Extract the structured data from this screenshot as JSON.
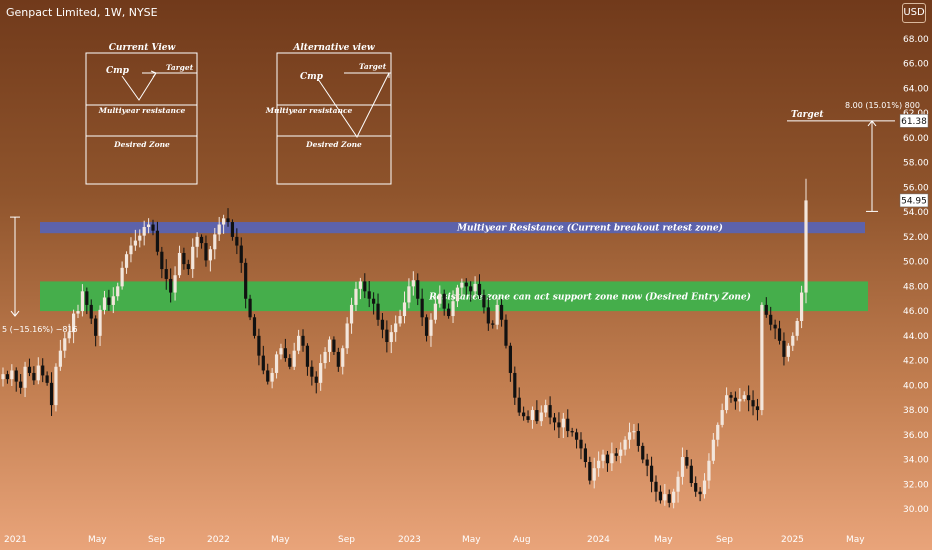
{
  "header": {
    "title": "Genpact Limited, 1W, NYSE",
    "currency": "USD"
  },
  "chart_data": {
    "type": "candlestick",
    "title": "Genpact Limited, 1W, NYSE",
    "y_axis": {
      "position": "right",
      "ylim": [
        29,
        70
      ],
      "ticks": [
        "30.00",
        "32.00",
        "34.00",
        "36.00",
        "38.00",
        "40.00",
        "42.00",
        "44.00",
        "46.00",
        "48.00",
        "50.00",
        "52.00",
        "54.00",
        "56.00",
        "58.00",
        "60.00",
        "62.00",
        "64.00",
        "66.00",
        "68.00"
      ]
    },
    "x_axis": {
      "ticks": [
        "2021",
        "May",
        "Sep",
        "2022",
        "May",
        "Sep",
        "2023",
        "May",
        "Aug",
        "2024",
        "May",
        "Sep",
        "2025",
        "May"
      ]
    },
    "price_labels": {
      "target": "61.38",
      "current": "54.95"
    },
    "zones": [
      {
        "label": "Multiyear Resistance (Current breakout retest zone)",
        "from": 52.3,
        "to": 53.2,
        "color": "#5a63b2"
      },
      {
        "label": "Resistance zone can act support zone now (Desired Entry Zone)",
        "from": 46.0,
        "to": 48.4,
        "color": "#3fb24c"
      }
    ],
    "target_line": {
      "label": "Target",
      "value": 61.38,
      "measure": "8.00 (15.01%) 800"
    },
    "left_measure": "5 (−15.16%) −816",
    "weekly_closes": [
      40.9,
      40.5,
      41.2,
      40.3,
      39.8,
      41.5,
      41.0,
      40.4,
      41.6,
      40.8,
      40.2,
      38.4,
      41.5,
      42.8,
      43.8,
      44.3,
      45.8,
      46.0,
      47.6,
      46.5,
      45.4,
      44.0,
      46.1,
      47.1,
      46.5,
      47.2,
      48.0,
      49.5,
      50.6,
      51.3,
      51.7,
      52.1,
      52.8,
      53.0,
      52.5,
      50.8,
      49.4,
      48.6,
      47.5,
      48.9,
      50.7,
      49.8,
      49.4,
      51.2,
      52.0,
      51.5,
      50.1,
      51.0,
      52.2,
      53.0,
      53.5,
      53.2,
      52.0,
      51.3,
      49.9,
      47.0,
      45.5,
      44.0,
      42.4,
      41.2,
      40.3,
      41.0,
      42.5,
      43.0,
      42.2,
      41.5,
      42.8,
      44.0,
      43.2,
      41.5,
      40.7,
      40.2,
      41.8,
      42.7,
      43.7,
      42.7,
      41.5,
      43.0,
      45.0,
      46.5,
      47.8,
      48.4,
      47.6,
      47.0,
      46.6,
      45.3,
      44.5,
      43.5,
      44.3,
      45.0,
      45.6,
      46.7,
      48.0,
      48.5,
      47.0,
      45.5,
      44.0,
      45.3,
      46.6,
      47.4,
      46.2,
      45.6,
      46.8,
      47.9,
      48.3,
      48.0,
      47.6,
      48.2,
      47.3,
      46.3,
      45.0,
      44.9,
      46.5,
      45.3,
      43.2,
      41.0,
      39.0,
      37.8,
      37.5,
      37.2,
      38.0,
      37.1,
      37.8,
      38.4,
      37.4,
      37.0,
      36.6,
      37.3,
      36.3,
      36.2,
      35.6,
      34.9,
      33.8,
      32.3,
      33.3,
      33.9,
      34.4,
      33.7,
      34.5,
      34.3,
      34.8,
      35.6,
      36.2,
      36.3,
      35.1,
      34.0,
      33.5,
      32.2,
      31.4,
      30.7,
      31.2,
      30.5,
      31.4,
      32.6,
      34.2,
      33.5,
      32.1,
      31.4,
      31.2,
      32.3,
      33.9,
      35.6,
      36.8,
      38.0,
      39.2,
      39.0,
      38.7,
      38.9,
      39.2,
      38.8,
      38.3,
      38.0,
      46.5,
      45.7,
      44.9,
      44.6,
      43.6,
      42.3,
      43.2,
      44.0,
      45.2,
      47.5,
      54.95
    ]
  }
}
